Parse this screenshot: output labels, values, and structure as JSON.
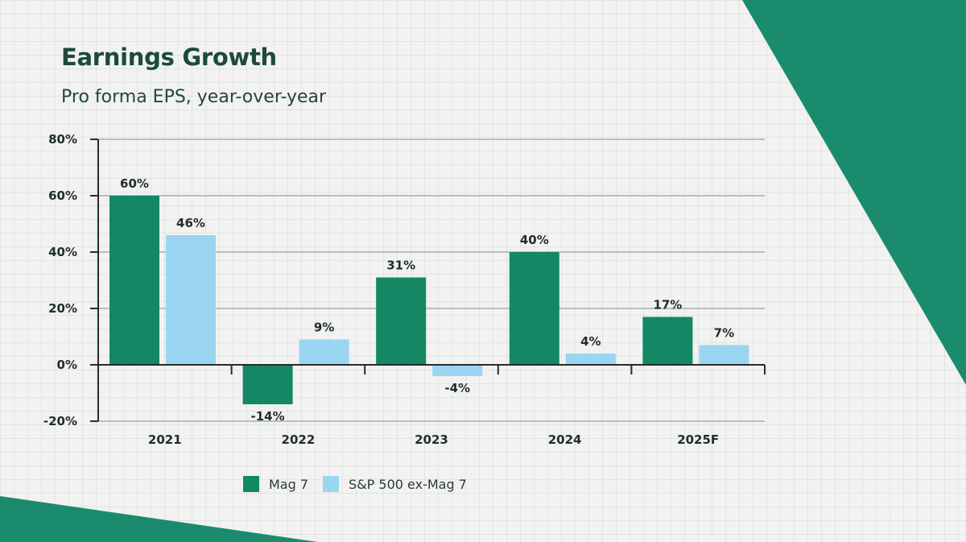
{
  "title": "Earnings Growth",
  "subtitle": "Pro forma EPS, year-over-year",
  "colors": {
    "mag7": "#148764",
    "sp500": "#9ad6f2",
    "accent": "#1a8c6d",
    "axis": "#2a2a2a",
    "grid": "#b9bfbd",
    "text": "#1f2e2a"
  },
  "chart_data": {
    "type": "bar",
    "title": "Earnings Growth",
    "subtitle": "Pro forma EPS, year-over-year",
    "xlabel": "",
    "ylabel": "",
    "categories": [
      "2021",
      "2022",
      "2023",
      "2024",
      "2025F"
    ],
    "series": [
      {
        "name": "Mag 7",
        "color": "#148764",
        "values": [
          60,
          -14,
          31,
          40,
          17
        ],
        "labels": [
          "60%",
          "-14%",
          "31%",
          "40%",
          "17%"
        ]
      },
      {
        "name": "S&P 500 ex-Mag 7",
        "color": "#9ad6f2",
        "values": [
          46,
          9,
          -4,
          4,
          7
        ],
        "labels": [
          "46%",
          "9%",
          "-4%",
          "4%",
          "7%"
        ]
      }
    ],
    "ylim": [
      -20,
      80
    ],
    "yticks": [
      80,
      60,
      40,
      20,
      0,
      -20
    ],
    "ytick_labels": [
      "80%",
      "60%",
      "40%",
      "20%",
      "0%",
      "-20%"
    ],
    "grid": true,
    "legend_position": "bottom"
  }
}
